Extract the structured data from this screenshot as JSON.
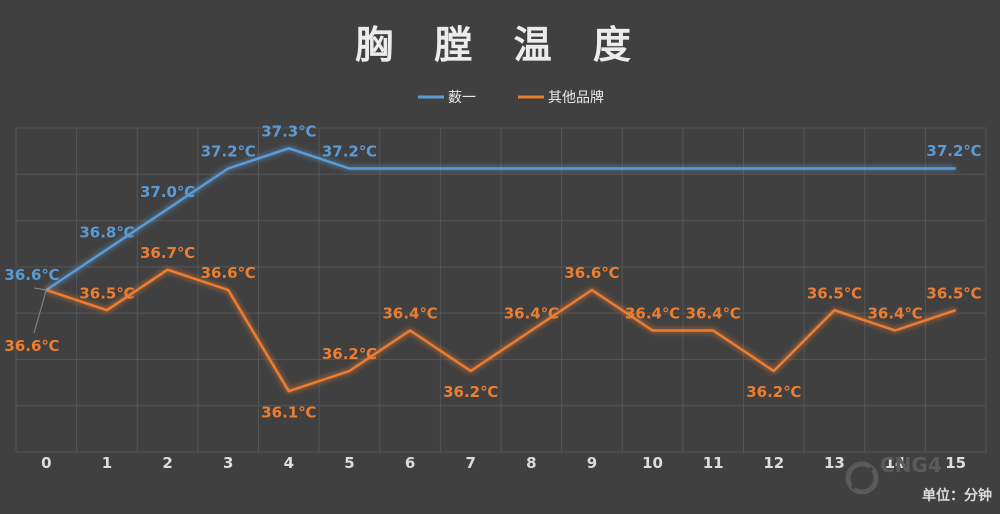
{
  "chart_data": {
    "type": "line",
    "title": "胸 膛 温 度",
    "x": [
      0,
      1,
      2,
      3,
      4,
      5,
      6,
      7,
      8,
      9,
      10,
      11,
      12,
      13,
      14,
      15
    ],
    "x_tick_labels": [
      "0",
      "1",
      "2",
      "3",
      "4",
      "5",
      "6",
      "7",
      "8",
      "9",
      "10",
      "11",
      "12",
      "13",
      "14",
      "15"
    ],
    "unit_label": "单位：分钟",
    "ylim": [
      35.8,
      37.4
    ],
    "grid": true,
    "legend_position": "top-center",
    "series": [
      {
        "name": "薮一",
        "color": "#5b9bd5",
        "values": [
          36.6,
          36.8,
          37.0,
          37.2,
          37.3,
          37.2,
          37.2,
          37.2,
          37.2,
          37.2,
          37.2,
          37.2,
          37.2,
          37.2,
          37.2,
          37.2
        ],
        "data_labels": [
          {
            "index": 0,
            "text": "36.6℃"
          },
          {
            "index": 1,
            "text": "36.8℃"
          },
          {
            "index": 2,
            "text": "37.0℃"
          },
          {
            "index": 3,
            "text": "37.2℃"
          },
          {
            "index": 4,
            "text": "37.3℃"
          },
          {
            "index": 5,
            "text": "37.2℃"
          },
          {
            "index": 15,
            "text": "37.2℃"
          }
        ]
      },
      {
        "name": "其他品牌",
        "color": "#ed7d31",
        "values": [
          36.6,
          36.5,
          36.7,
          36.6,
          36.1,
          36.2,
          36.4,
          36.2,
          36.4,
          36.6,
          36.4,
          36.4,
          36.2,
          36.5,
          36.4,
          36.5
        ],
        "data_labels": [
          {
            "index": 0,
            "text": "36.6℃"
          },
          {
            "index": 1,
            "text": "36.5℃"
          },
          {
            "index": 2,
            "text": "36.7℃"
          },
          {
            "index": 3,
            "text": "36.6℃"
          },
          {
            "index": 4,
            "text": "36.1℃"
          },
          {
            "index": 5,
            "text": "36.2℃"
          },
          {
            "index": 6,
            "text": "36.4℃"
          },
          {
            "index": 7,
            "text": "36.2℃"
          },
          {
            "index": 8,
            "text": "36.4℃"
          },
          {
            "index": 9,
            "text": "36.6℃"
          },
          {
            "index": 10,
            "text": "36.4℃"
          },
          {
            "index": 11,
            "text": "36.4℃"
          },
          {
            "index": 12,
            "text": "36.2℃"
          },
          {
            "index": 13,
            "text": "36.5℃"
          },
          {
            "index": 14,
            "text": "36.4℃"
          },
          {
            "index": 15,
            "text": "36.5℃"
          }
        ]
      }
    ]
  },
  "watermark": {
    "text": "CNG4",
    "icon": "cng4-logo-icon"
  },
  "colors": {
    "background": "#404040",
    "grid": "#555555"
  }
}
